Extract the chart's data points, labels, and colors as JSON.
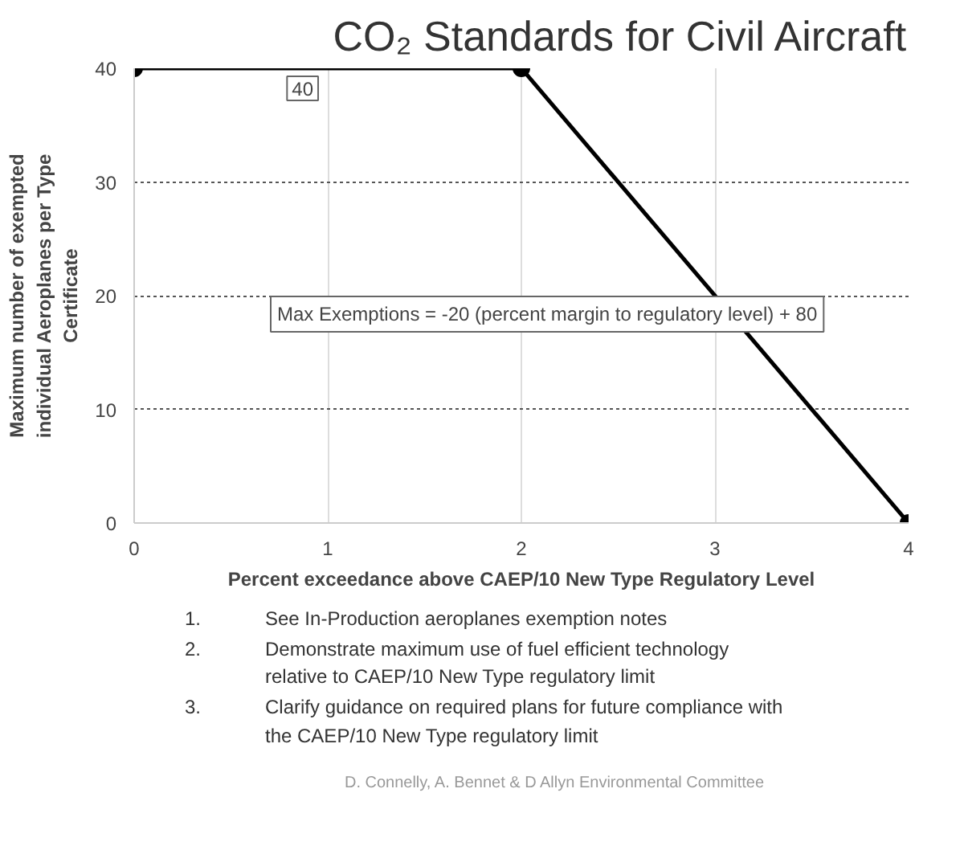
{
  "chart_data": {
    "type": "line",
    "title": "CO₂ Standards for Civil Aircraft",
    "xlabel": "Percent exceedance above CAEP/10 New Type Regulatory Level",
    "ylabel": "Maximum number of exempted individual Aeroplanes per Type Certificate",
    "x": [
      0,
      2,
      4
    ],
    "series": [
      {
        "color": "#000000",
        "values": [
          40,
          40,
          0
        ]
      }
    ],
    "xlim": [
      0,
      4
    ],
    "ylim": [
      0,
      40
    ],
    "xticks": [
      0,
      1,
      2,
      3,
      4
    ],
    "yticks": [
      0,
      10,
      20,
      30,
      40
    ],
    "grid": true,
    "marker": "circle",
    "line_style": "solid",
    "annotations": [
      {
        "text": "40",
        "x": 0.87,
        "y": 40
      },
      "Max Exemptions = -20 (percent margin to regulatory level) + 80",
      "1.\tSee In-Production aeroplanes exemption notes",
      "2.\tDemonstrate maximum use of fuel efficient technology relative to CAEP/10 New Type regulatory limit",
      "3.\tClarify guidance on required plans for future compliance with the CAEP/10 New Type regulatory limit",
      "D. Connelly, A. Bennet & D Allyn Environmental Committee"
    ]
  }
}
